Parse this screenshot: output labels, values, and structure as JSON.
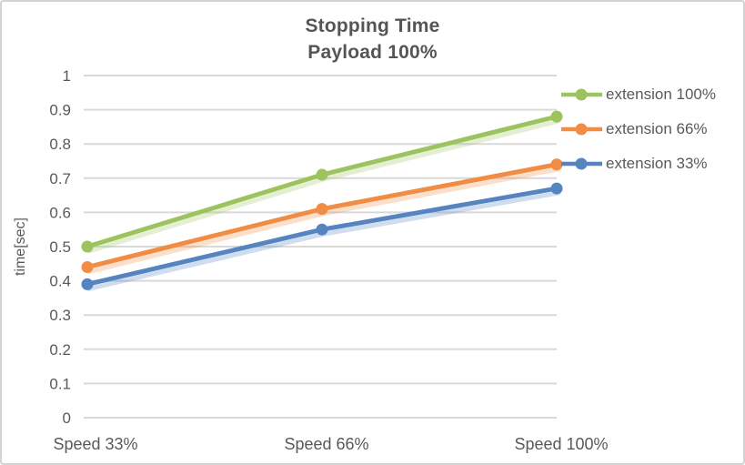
{
  "title": {
    "line1": "Stopping Time",
    "line2": "Payload 100%"
  },
  "chart_data": {
    "type": "line",
    "title": "Stopping Time Payload 100%",
    "categories": [
      "Speed 33%",
      "Speed 66%",
      "Speed 100%"
    ],
    "series": [
      {
        "name": "extension 100%",
        "color": "#9DC35F",
        "values": [
          0.5,
          0.71,
          0.88
        ]
      },
      {
        "name": "extension 66%",
        "color": "#F08C44",
        "values": [
          0.44,
          0.61,
          0.74
        ]
      },
      {
        "name": "extension 33%",
        "color": "#5584C1",
        "values": [
          0.39,
          0.55,
          0.67
        ]
      }
    ],
    "xlabel": "",
    "ylabel": "time[sec]",
    "ylim": [
      0,
      1
    ],
    "ytick_step": 0.1,
    "yticks": [
      "1",
      "0.9",
      "0.8",
      "0.7",
      "0.6",
      "0.5",
      "0.4",
      "0.3",
      "0.2",
      "0.1",
      "0"
    ],
    "grid": "horizontal",
    "gridline_color": "#D9D9D9",
    "text_color": "#595959",
    "legend_position": "right",
    "marker": "circle"
  }
}
